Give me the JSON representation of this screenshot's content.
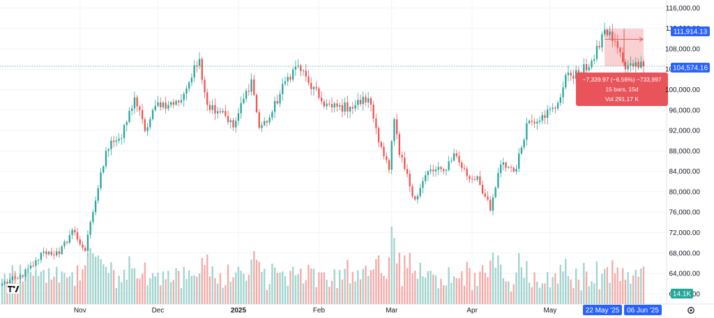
{
  "colors": {
    "up": "#26a69a",
    "down": "#ef5350",
    "up_volume": "#9fd3cd",
    "down_volume": "#f4a9a7",
    "blue_tag": "#2962ff",
    "measure_box": "#e8545a",
    "measure_zone": "#f7c6c7",
    "grid": "#f0f3fa"
  },
  "logo": {
    "icon": "tradingview-logo-icon"
  },
  "settings": {
    "icon": "gear-icon"
  },
  "price_tags": {
    "high": "111,914.13",
    "last": "104,574.16",
    "volume": "14.1K"
  },
  "date_tags": {
    "start": "22 May '25",
    "end": "06 Jun '25"
  },
  "measure": {
    "line1": "−7,339.97 (−6.56%) −733,997",
    "line2": "15 bars, 15d",
    "line3": "Vol 291.17 K"
  },
  "chart_data": {
    "type": "candlestick",
    "price_axis": {
      "ylim": [
        58000,
        117000
      ],
      "ticks": [
        116000,
        112000,
        108000,
        104000,
        100000,
        96000,
        92000,
        88000,
        84000,
        80000,
        76000,
        72000,
        68000,
        64000,
        60000
      ],
      "tick_labels": [
        "116,000.00",
        "112,000.00",
        "108,000.00",
        "104,000.00",
        "100,000.00",
        "96,000.00",
        "92,000.00",
        "88,000.00",
        "84,000.00",
        "80,000.00",
        "76,000.00",
        "72,000.00",
        "68,000.00",
        "64,000.00",
        "60,000.00"
      ]
    },
    "time_axis": {
      "start": "2024-10-02",
      "end": "2025-06-06",
      "labels": [
        {
          "date": "2024-11-01",
          "text": "Nov",
          "bold": false
        },
        {
          "date": "2024-12-01",
          "text": "Dec",
          "bold": false
        },
        {
          "date": "2025-01-01",
          "text": "2025",
          "bold": true
        },
        {
          "date": "2025-02-01",
          "text": "Feb",
          "bold": false
        },
        {
          "date": "2025-03-01",
          "text": "Mar",
          "bold": false
        },
        {
          "date": "2025-04-01",
          "text": "Apr",
          "bold": false
        },
        {
          "date": "2025-05-01",
          "text": "May",
          "bold": false
        }
      ]
    },
    "closes": [
      [
        "2024-10-02",
        62000
      ],
      [
        "2024-10-08",
        63000
      ],
      [
        "2024-10-14",
        65500
      ],
      [
        "2024-10-18",
        68300
      ],
      [
        "2024-10-24",
        67800
      ],
      [
        "2024-10-29",
        72500
      ],
      [
        "2024-11-03",
        68400
      ],
      [
        "2024-11-06",
        76000
      ],
      [
        "2024-11-11",
        88000
      ],
      [
        "2024-11-13",
        90000
      ],
      [
        "2024-11-17",
        90500
      ],
      [
        "2024-11-22",
        98500
      ],
      [
        "2024-11-26",
        91900
      ],
      [
        "2024-12-01",
        97500
      ],
      [
        "2024-12-05",
        97000
      ],
      [
        "2024-12-09",
        97500
      ],
      [
        "2024-12-13",
        101400
      ],
      [
        "2024-12-17",
        106000
      ],
      [
        "2024-12-20",
        97000
      ],
      [
        "2024-12-26",
        95800
      ],
      [
        "2024-12-30",
        92600
      ],
      [
        "2025-01-06",
        102000
      ],
      [
        "2025-01-09",
        92500
      ],
      [
        "2025-01-13",
        94500
      ],
      [
        "2025-01-20",
        102500
      ],
      [
        "2025-01-24",
        104700
      ],
      [
        "2025-01-28",
        101300
      ],
      [
        "2025-02-02",
        97700
      ],
      [
        "2025-02-06",
        96500
      ],
      [
        "2025-02-13",
        96600
      ],
      [
        "2025-02-20",
        98300
      ],
      [
        "2025-02-25",
        88800
      ],
      [
        "2025-02-28",
        84300
      ],
      [
        "2025-03-02",
        94200
      ],
      [
        "2025-03-04",
        87200
      ],
      [
        "2025-03-10",
        78500
      ],
      [
        "2025-03-15",
        84000
      ],
      [
        "2025-03-21",
        84100
      ],
      [
        "2025-03-25",
        87500
      ],
      [
        "2025-03-31",
        82500
      ],
      [
        "2025-04-03",
        83000
      ],
      [
        "2025-04-08",
        76300
      ],
      [
        "2025-04-12",
        85300
      ],
      [
        "2025-04-18",
        84500
      ],
      [
        "2025-04-22",
        93400
      ],
      [
        "2025-04-28",
        95000
      ],
      [
        "2025-05-03",
        96300
      ],
      [
        "2025-05-08",
        103300
      ],
      [
        "2025-05-12",
        102800
      ],
      [
        "2025-05-18",
        106000
      ],
      [
        "2025-05-22",
        111700
      ],
      [
        "2025-05-26",
        109500
      ],
      [
        "2025-05-30",
        104000
      ],
      [
        "2025-06-03",
        105400
      ],
      [
        "2025-06-06",
        104574.16
      ]
    ],
    "volume_axis": {
      "ylim": [
        0,
        100000
      ]
    },
    "volume": {
      "label": "14.1K"
    },
    "last_price": 104574.16,
    "period_high": 111914.13,
    "measure_range": {
      "from": "2025-05-22",
      "to": "2025-06-06",
      "high": 111914.13,
      "low": 104574.16
    }
  }
}
